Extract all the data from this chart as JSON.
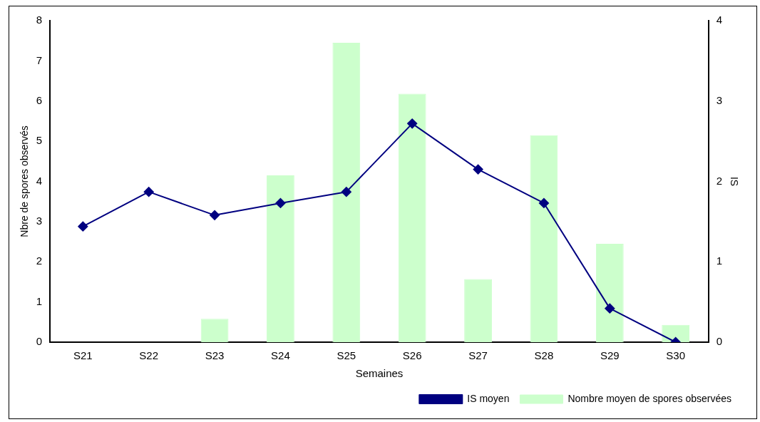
{
  "chart_data": {
    "type": "bar",
    "xlabel": "Semaines",
    "ylabel": "Nbre de spores observés",
    "y2label": "IS",
    "categories": [
      "S21",
      "S22",
      "S23",
      "S24",
      "S25",
      "S26",
      "S27",
      "S28",
      "S29",
      "S30"
    ],
    "series": [
      {
        "name": "Nombre moyen de spores observées",
        "color": "#ccffcc",
        "values": [
          0,
          0,
          0.58,
          4.15,
          7.45,
          6.18,
          1.57,
          5.15,
          2.45,
          0.43
        ]
      },
      {
        "name": "IS moyen",
        "type": "line",
        "axis": "y2",
        "color": "#000080",
        "marker": "diamond",
        "values": [
          1.44,
          1.87,
          1.58,
          1.73,
          1.87,
          2.72,
          2.15,
          1.73,
          0.42,
          0
        ]
      }
    ],
    "ylim": [
      0,
      8
    ],
    "yticks": [
      0,
      1,
      2,
      3,
      4,
      5,
      6,
      7,
      8
    ],
    "y2lim": [
      0,
      4
    ],
    "y2ticks": [
      0,
      1,
      2,
      3,
      4
    ],
    "grid": false,
    "legend": "bottom right"
  }
}
